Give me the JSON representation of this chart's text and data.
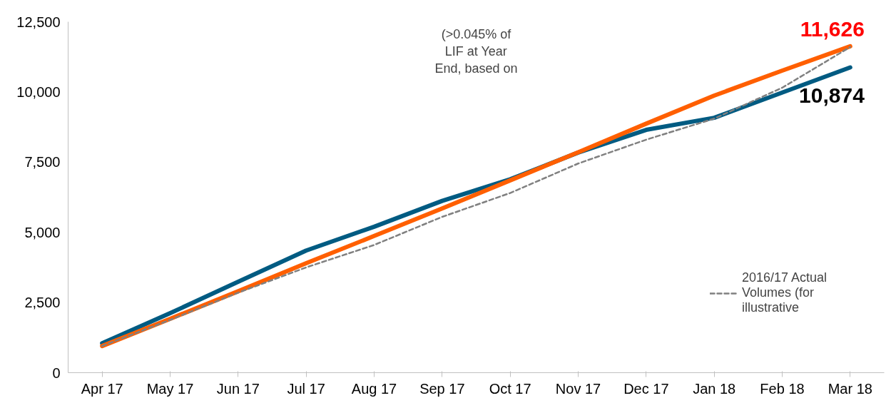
{
  "chart_data": {
    "type": "line",
    "categories": [
      "Apr 17",
      "May 17",
      "Jun 17",
      "Jul 17",
      "Aug 17",
      "Sep 17",
      "Oct 17",
      "Nov 17",
      "Dec 17",
      "Jan 18",
      "Feb 18",
      "Mar 18"
    ],
    "series": [
      {
        "color": "#005b82",
        "values": [
          1050,
          2120,
          3240,
          4350,
          5200,
          6120,
          6890,
          7840,
          8650,
          9080,
          9980,
          10874
        ],
        "value_labels": [
          null,
          null,
          null,
          null,
          null,
          null,
          null,
          null,
          null,
          null,
          null,
          "10,874"
        ]
      },
      {
        "color": "#ff5f00",
        "values": [
          950,
          1920,
          2900,
          3900,
          4870,
          5850,
          6850,
          7850,
          8870,
          9870,
          10760,
          11626
        ],
        "value_labels": [
          null,
          null,
          null,
          null,
          null,
          null,
          null,
          null,
          null,
          null,
          null,
          "11,626"
        ]
      },
      {
        "name": "2016/17 Actual Volumes (for illustrative",
        "color": "#808080",
        "line_style": "dashed",
        "values": [
          950,
          1880,
          2850,
          3750,
          4550,
          5550,
          6400,
          7450,
          8300,
          9050,
          10150,
          11600
        ]
      }
    ],
    "ylim": [
      0,
      12500
    ],
    "yticks": [
      {
        "value": 0,
        "label": "0"
      },
      {
        "value": 2500,
        "label": "2,500"
      },
      {
        "value": 5000,
        "label": "5,000"
      },
      {
        "value": 7500,
        "label": "7,500"
      },
      {
        "value": 10000,
        "label": "10,000"
      },
      {
        "value": 12500,
        "label": "12,500"
      }
    ],
    "annotations": [
      "(>0.045% of LIF at Year End, based on"
    ],
    "grid": false,
    "legend": "right",
    "marker": "none"
  }
}
